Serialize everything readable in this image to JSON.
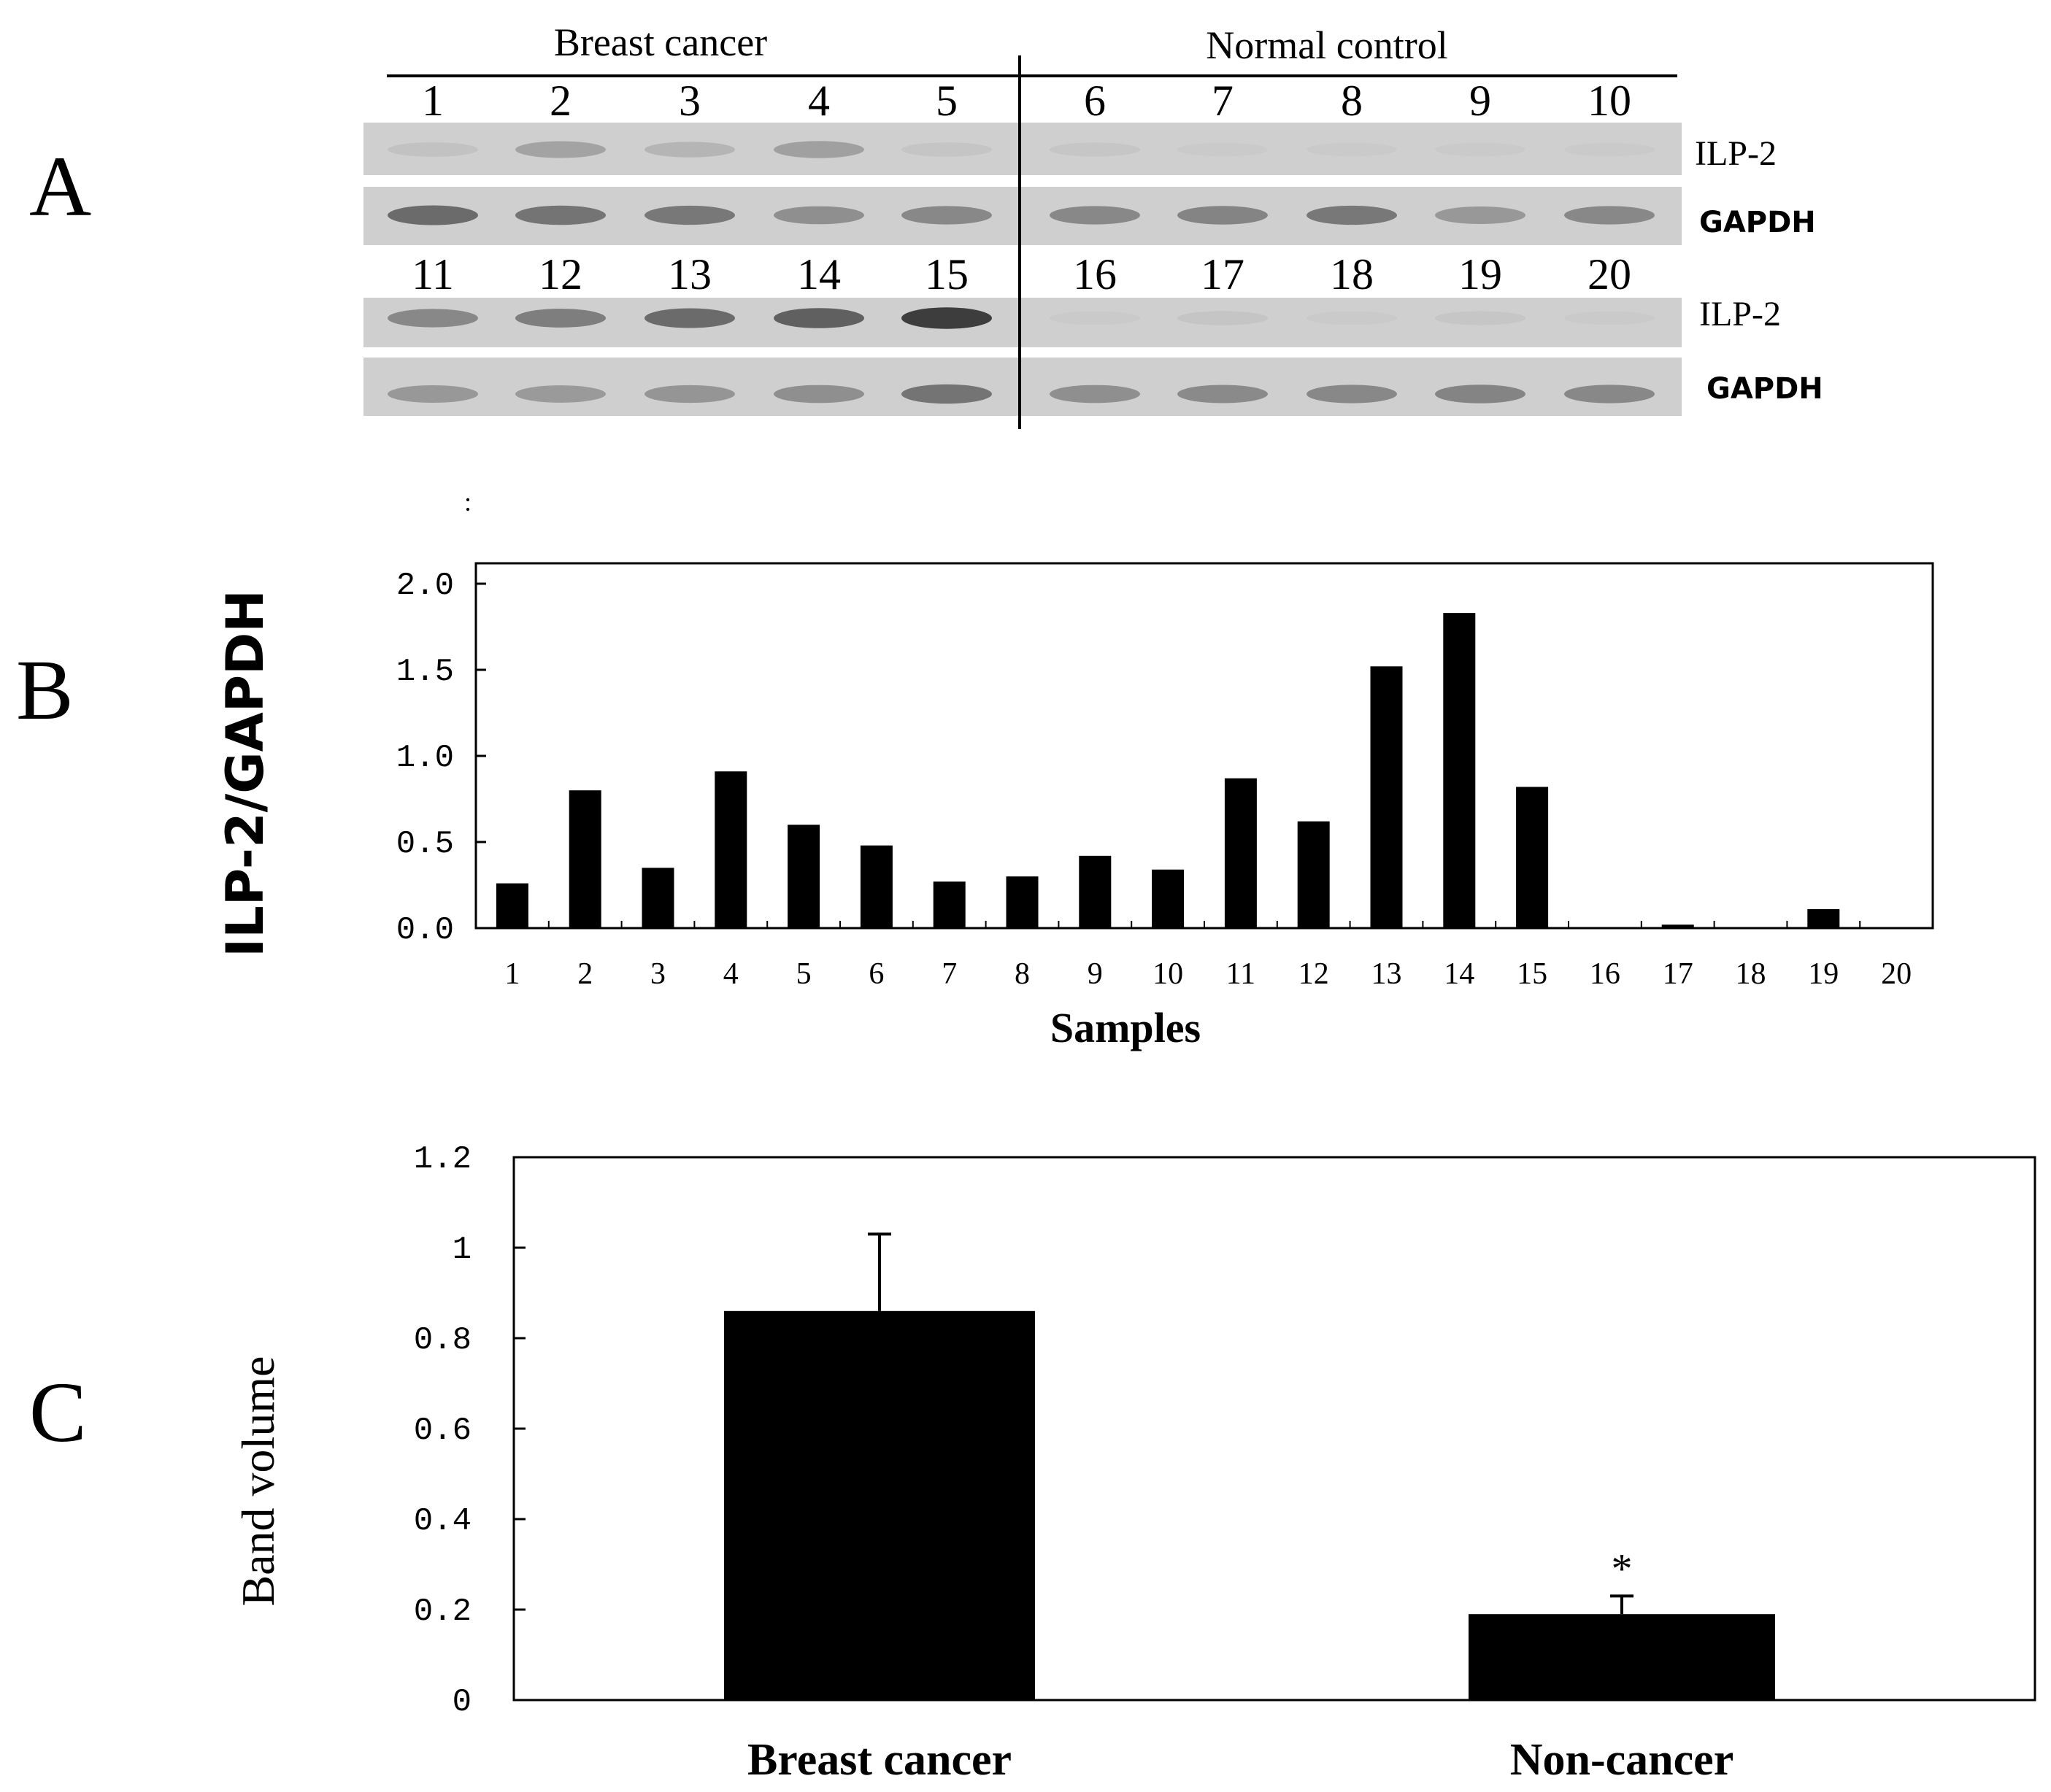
{
  "panels": {
    "a": {
      "letter": "A",
      "group_left": "Breast cancer",
      "group_right": "Normal control",
      "row1_lanes": [
        "1",
        "2",
        "3",
        "4",
        "5",
        "6",
        "7",
        "8",
        "9",
        "10"
      ],
      "row2_lanes": [
        "11",
        "12",
        "13",
        "14",
        "15",
        "16",
        "17",
        "18",
        "19",
        "20"
      ],
      "blot_labels": [
        "ILP-2",
        "GAPDH",
        "ILP-2",
        "GAPDH"
      ],
      "band_intensity": {
        "ilp2_row1": [
          0.15,
          0.42,
          0.28,
          0.45,
          0.12,
          0.1,
          0.05,
          0.05,
          0.05,
          0.04
        ],
        "gapdh_row1": [
          0.75,
          0.7,
          0.68,
          0.55,
          0.6,
          0.6,
          0.62,
          0.68,
          0.5,
          0.6
        ],
        "ilp2_row2": [
          0.6,
          0.65,
          0.75,
          0.8,
          0.95,
          0.05,
          0.12,
          0.05,
          0.1,
          0.04
        ],
        "gapdh_row2": [
          0.5,
          0.48,
          0.52,
          0.55,
          0.7,
          0.55,
          0.58,
          0.6,
          0.62,
          0.6
        ]
      }
    },
    "b": {
      "letter": "B",
      "stray_mark": ":"
    },
    "c": {
      "letter": "C",
      "significance_mark": "*"
    }
  },
  "chart_data": [
    {
      "type": "bar",
      "xlabel": "Samples",
      "ylabel": "ILP-2/GAPDH",
      "categories": [
        "1",
        "2",
        "3",
        "4",
        "5",
        "6",
        "7",
        "8",
        "9",
        "10",
        "11",
        "12",
        "13",
        "14",
        "15",
        "16",
        "17",
        "18",
        "19",
        "20"
      ],
      "values": [
        0.26,
        0.8,
        0.35,
        0.91,
        0.6,
        0.48,
        0.27,
        0.3,
        0.42,
        0.34,
        0.87,
        0.62,
        1.52,
        1.83,
        0.82,
        0.0,
        0.02,
        0.0,
        0.11,
        0.0
      ],
      "y_ticks": [
        "0.0",
        "0.5",
        "1.0",
        "1.5",
        "2.0"
      ],
      "y_tick_values": [
        0.0,
        0.5,
        1.0,
        1.5,
        2.0
      ],
      "ylim": [
        0,
        2.0
      ],
      "grid": false
    },
    {
      "type": "bar",
      "xlabel": "",
      "ylabel": "Band volume",
      "categories": [
        "Breast cancer",
        "Non-cancer"
      ],
      "values": [
        0.86,
        0.19
      ],
      "error": [
        0.17,
        0.04
      ],
      "y_ticks": [
        "0",
        "0.2",
        "0.4",
        "0.6",
        "0.8",
        "1",
        "1.2"
      ],
      "ylim": [
        0,
        1.2
      ],
      "grid": false
    }
  ]
}
